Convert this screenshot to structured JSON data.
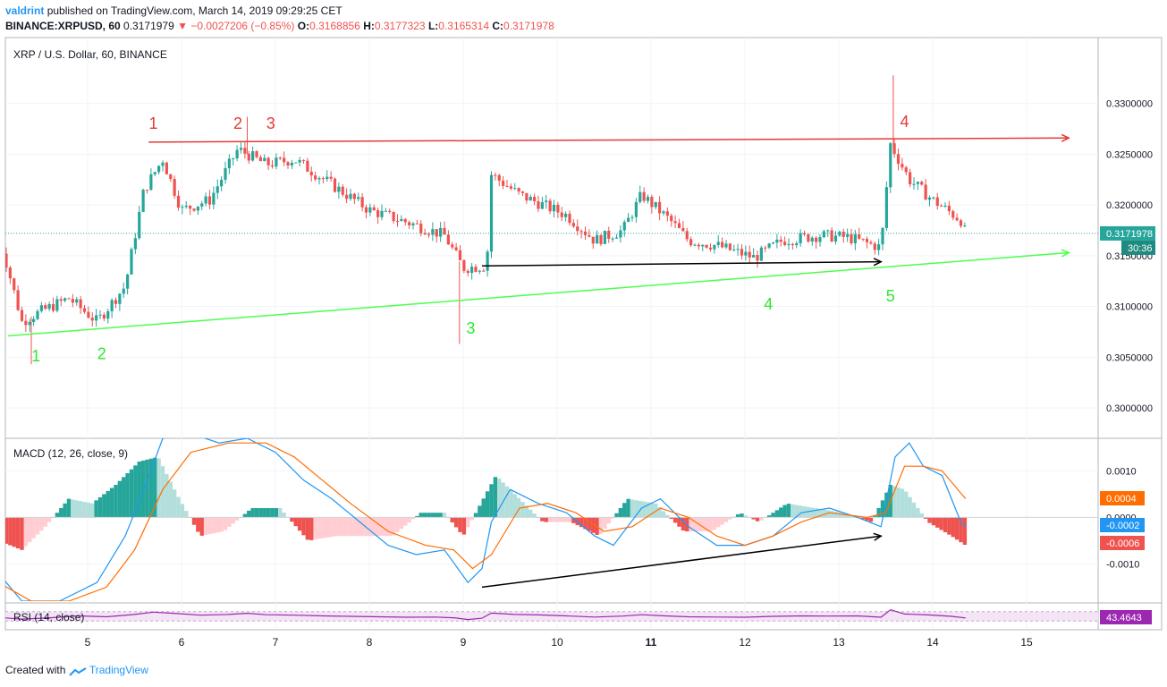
{
  "header": {
    "author": "valdrint",
    "published": "published on TradingView.com, March 14, 2019 09:29:25 CET",
    "symbol": "BINANCE:XRPUSD, 60",
    "last": "0.3171979",
    "change": "▼ −0.0027206 (−0.85%)",
    "o_label": "O:",
    "o_value": "0.3168856",
    "h_label": "H:",
    "h_value": "0.3177323",
    "l_label": "L:",
    "l_value": "0.3165314",
    "c_label": "C:",
    "c_value": "0.3171978"
  },
  "footer": {
    "created_with": "Created with",
    "brand": "TradingView"
  },
  "colors": {
    "up": "#26a69a",
    "down": "#ef5350",
    "resistance": "#e53935",
    "support": "#4cff4c",
    "macd": "#2196f3",
    "signal": "#ff6d00",
    "rsi": "#9c27b0"
  },
  "chart_data": [
    {
      "type": "candlestick",
      "title": "XRP / U.S. Dollar, 60, BINANCE",
      "ylim": [
        0.297,
        0.3365
      ],
      "y_ticks": [
        "0.3000000",
        "0.3050000",
        "0.3100000",
        "0.3150000",
        "0.3200000",
        "0.3250000",
        "0.3300000"
      ],
      "x_ticks": [
        "5",
        "6",
        "7",
        "8",
        "9",
        "10",
        "11",
        "12",
        "13",
        "14",
        "15"
      ],
      "current_price": "0.3171978",
      "countdown": "30:36",
      "key_closes": [
        {
          "t": 4.1,
          "v": 0.3155
        },
        {
          "t": 4.3,
          "v": 0.3085
        },
        {
          "t": 4.5,
          "v": 0.3095
        },
        {
          "t": 4.8,
          "v": 0.3108
        },
        {
          "t": 5.1,
          "v": 0.3085
        },
        {
          "t": 5.4,
          "v": 0.312
        },
        {
          "t": 5.6,
          "v": 0.3215
        },
        {
          "t": 5.8,
          "v": 0.3245
        },
        {
          "t": 6.0,
          "v": 0.3195
        },
        {
          "t": 6.3,
          "v": 0.3205
        },
        {
          "t": 6.6,
          "v": 0.3255
        },
        {
          "t": 6.9,
          "v": 0.324
        },
        {
          "t": 7.2,
          "v": 0.3245
        },
        {
          "t": 7.6,
          "v": 0.322
        },
        {
          "t": 8.0,
          "v": 0.3195
        },
        {
          "t": 8.5,
          "v": 0.318
        },
        {
          "t": 8.8,
          "v": 0.317
        },
        {
          "t": 9.0,
          "v": 0.3138
        },
        {
          "t": 9.25,
          "v": 0.314
        },
        {
          "t": 9.3,
          "v": 0.323
        },
        {
          "t": 9.6,
          "v": 0.321
        },
        {
          "t": 10.1,
          "v": 0.319
        },
        {
          "t": 10.4,
          "v": 0.3165
        },
        {
          "t": 10.7,
          "v": 0.3175
        },
        {
          "t": 10.9,
          "v": 0.321
        },
        {
          "t": 11.2,
          "v": 0.3185
        },
        {
          "t": 11.4,
          "v": 0.3165
        },
        {
          "t": 11.7,
          "v": 0.316
        },
        {
          "t": 12.1,
          "v": 0.3148
        },
        {
          "t": 12.4,
          "v": 0.3165
        },
        {
          "t": 12.8,
          "v": 0.317
        },
        {
          "t": 13.1,
          "v": 0.3168
        },
        {
          "t": 13.45,
          "v": 0.3158
        },
        {
          "t": 13.55,
          "v": 0.326
        },
        {
          "t": 13.75,
          "v": 0.3225
        },
        {
          "t": 14.0,
          "v": 0.3205
        },
        {
          "t": 14.3,
          "v": 0.3185
        },
        {
          "t": 14.35,
          "v": 0.3172
        }
      ],
      "extremes": [
        {
          "t": 4.4,
          "high": null,
          "low": 0.3043
        },
        {
          "t": 6.7,
          "high": 0.3287,
          "low": null
        },
        {
          "t": 8.96,
          "high": null,
          "low": 0.3063
        },
        {
          "t": 13.58,
          "high": 0.3328,
          "low": null
        }
      ],
      "drawings": {
        "resistance": {
          "from": {
            "t": 5.65,
            "v": 0.3262
          },
          "to": {
            "t": 15.45,
            "v": 0.3266
          }
        },
        "support": {
          "from": {
            "t": 4.15,
            "v": 0.3071
          },
          "to": {
            "t": 15.45,
            "v": 0.3153
          }
        },
        "black_arrow": {
          "from": {
            "t": 9.2,
            "v": 0.314
          },
          "to": {
            "t": 13.45,
            "v": 0.3144
          }
        },
        "labels": [
          {
            "text": "1",
            "color": "resistance",
            "t": 5.7,
            "v": 0.3275
          },
          {
            "text": "2",
            "color": "resistance",
            "t": 6.6,
            "v": 0.3275
          },
          {
            "text": "3",
            "color": "resistance",
            "t": 6.95,
            "v": 0.3275
          },
          {
            "text": "4",
            "color": "resistance",
            "t": 13.7,
            "v": 0.3277
          },
          {
            "text": "1",
            "color": "support",
            "t": 4.45,
            "v": 0.3046
          },
          {
            "text": "2",
            "color": "support",
            "t": 5.15,
            "v": 0.3048
          },
          {
            "text": "3",
            "color": "support",
            "t": 9.08,
            "v": 0.3073
          },
          {
            "text": "4",
            "color": "support",
            "t": 12.25,
            "v": 0.3097
          },
          {
            "text": "5",
            "color": "support",
            "t": 13.55,
            "v": 0.3105
          }
        ]
      }
    },
    {
      "type": "line+bar",
      "title": "MACD (12, 26, close, 9)",
      "ylim": [
        -0.0018,
        0.0017
      ],
      "y_ticks": [
        "0.0010",
        "0.0000",
        "-0.0010"
      ],
      "badges": [
        "0.0004",
        "-0.0002",
        "-0.0006"
      ],
      "series": [
        {
          "name": "macd",
          "points": [
            [
              4.05,
              -0.0012
            ],
            [
              4.3,
              -0.0018
            ],
            [
              4.7,
              -0.0018
            ],
            [
              5.1,
              -0.0014
            ],
            [
              5.4,
              -0.0004
            ],
            [
              5.6,
              0.0006
            ],
            [
              5.8,
              0.0017
            ],
            [
              6.1,
              0.0018
            ],
            [
              6.4,
              0.0016
            ],
            [
              6.7,
              0.0017
            ],
            [
              7.0,
              0.0014
            ],
            [
              7.3,
              0.0008
            ],
            [
              7.6,
              0.0004
            ],
            [
              7.9,
              -0.0001
            ],
            [
              8.2,
              -0.0006
            ],
            [
              8.5,
              -0.0008
            ],
            [
              8.8,
              -0.0007
            ],
            [
              9.05,
              -0.0014
            ],
            [
              9.2,
              -0.0011
            ],
            [
              9.3,
              -0.0001
            ],
            [
              9.5,
              0.0006
            ],
            [
              9.8,
              0.0003
            ],
            [
              10.1,
              0.0001
            ],
            [
              10.4,
              -0.0004
            ],
            [
              10.6,
              -0.0006
            ],
            [
              10.9,
              0.0002
            ],
            [
              11.1,
              0.0004
            ],
            [
              11.4,
              -0.0002
            ],
            [
              11.7,
              -0.0006
            ],
            [
              12.0,
              -0.0006
            ],
            [
              12.3,
              -0.0004
            ],
            [
              12.6,
              0.0001
            ],
            [
              12.9,
              0.0002
            ],
            [
              13.2,
              0.0
            ],
            [
              13.45,
              -0.0002
            ],
            [
              13.6,
              0.0013
            ],
            [
              13.75,
              0.0016
            ],
            [
              13.9,
              0.0011
            ],
            [
              14.1,
              0.0009
            ],
            [
              14.3,
              -0.0001
            ],
            [
              14.35,
              -0.0002
            ]
          ]
        },
        {
          "name": "signal",
          "points": [
            [
              4.05,
              -0.0014
            ],
            [
              4.4,
              -0.0018
            ],
            [
              4.8,
              -0.0018
            ],
            [
              5.2,
              -0.0015
            ],
            [
              5.5,
              -0.0007
            ],
            [
              5.8,
              0.0006
            ],
            [
              6.1,
              0.0014
            ],
            [
              6.5,
              0.0016
            ],
            [
              6.9,
              0.0016
            ],
            [
              7.2,
              0.0013
            ],
            [
              7.5,
              0.0008
            ],
            [
              7.8,
              0.0003
            ],
            [
              8.2,
              -0.0003
            ],
            [
              8.6,
              -0.0006
            ],
            [
              8.9,
              -0.0007
            ],
            [
              9.1,
              -0.0011
            ],
            [
              9.3,
              -0.0008
            ],
            [
              9.6,
              0.0002
            ],
            [
              9.9,
              0.0003
            ],
            [
              10.2,
              0.0001
            ],
            [
              10.5,
              -0.0003
            ],
            [
              10.8,
              -0.0002
            ],
            [
              11.1,
              0.0002
            ],
            [
              11.4,
              0.0
            ],
            [
              11.7,
              -0.0004
            ],
            [
              12.0,
              -0.0006
            ],
            [
              12.3,
              -0.0004
            ],
            [
              12.6,
              -0.0001
            ],
            [
              12.9,
              0.0001
            ],
            [
              13.3,
              0.0
            ],
            [
              13.5,
              0.0001
            ],
            [
              13.7,
              0.0011
            ],
            [
              13.9,
              0.0011
            ],
            [
              14.1,
              0.001
            ],
            [
              14.35,
              0.0004
            ]
          ]
        }
      ],
      "histogram": [
        {
          "t": 4.05,
          "v": -0.0005
        },
        {
          "t": 4.3,
          "v": -0.0007
        },
        {
          "t": 4.55,
          "v": -0.0002
        },
        {
          "t": 4.8,
          "v": 0.0004
        },
        {
          "t": 5.05,
          "v": 0.0003
        },
        {
          "t": 5.3,
          "v": 0.0007
        },
        {
          "t": 5.55,
          "v": 0.0012
        },
        {
          "t": 5.75,
          "v": 0.0013
        },
        {
          "t": 5.95,
          "v": 0.0005
        },
        {
          "t": 6.2,
          "v": -0.0004
        },
        {
          "t": 6.45,
          "v": -0.0003
        },
        {
          "t": 6.75,
          "v": 0.0002
        },
        {
          "t": 7.05,
          "v": 0.0002
        },
        {
          "t": 7.35,
          "v": -0.0005
        },
        {
          "t": 7.65,
          "v": -0.0004
        },
        {
          "t": 7.95,
          "v": -0.0004
        },
        {
          "t": 8.25,
          "v": -0.0004
        },
        {
          "t": 8.55,
          "v": 0.0001
        },
        {
          "t": 8.8,
          "v": 0.0001
        },
        {
          "t": 9.0,
          "v": -0.0004
        },
        {
          "t": 9.35,
          "v": 0.0009
        },
        {
          "t": 9.6,
          "v": 0.0004
        },
        {
          "t": 9.85,
          "v": -0.0001
        },
        {
          "t": 10.15,
          "v": -0.0001
        },
        {
          "t": 10.45,
          "v": -0.0004
        },
        {
          "t": 10.75,
          "v": 0.0004
        },
        {
          "t": 11.05,
          "v": 0.0003
        },
        {
          "t": 11.35,
          "v": -0.0003
        },
        {
          "t": 11.65,
          "v": -0.0003
        },
        {
          "t": 11.95,
          "v": 0.0001
        },
        {
          "t": 12.15,
          "v": -0.0001
        },
        {
          "t": 12.45,
          "v": 0.0003
        },
        {
          "t": 12.75,
          "v": 0.0002
        },
        {
          "t": 13.05,
          "v": 0.0001
        },
        {
          "t": 13.35,
          "v": -0.0001
        },
        {
          "t": 13.55,
          "v": 0.0007
        },
        {
          "t": 13.7,
          "v": 0.0006
        },
        {
          "t": 13.95,
          "v": -0.0001
        },
        {
          "t": 14.2,
          "v": -0.0004
        },
        {
          "t": 14.35,
          "v": -0.0006
        }
      ],
      "black_arrow": {
        "from": {
          "t": 9.2,
          "v": -0.0015
        },
        "to": {
          "t": 13.45,
          "v": -0.0004
        }
      }
    },
    {
      "type": "line",
      "title": "RSI (14, close)",
      "ylim": [
        0,
        100
      ],
      "bands": [
        30,
        70
      ],
      "badge": "43.4643",
      "series": [
        {
          "name": "rsi",
          "points": [
            [
              4.05,
              45
            ],
            [
              4.3,
              38
            ],
            [
              4.6,
              44
            ],
            [
              4.9,
              52
            ],
            [
              5.2,
              48
            ],
            [
              5.5,
              58
            ],
            [
              5.7,
              68
            ],
            [
              5.95,
              62
            ],
            [
              6.2,
              55
            ],
            [
              6.5,
              58
            ],
            [
              6.7,
              63
            ],
            [
              6.9,
              57
            ],
            [
              7.2,
              55
            ],
            [
              7.5,
              52
            ],
            [
              7.8,
              50
            ],
            [
              8.1,
              48
            ],
            [
              8.4,
              46
            ],
            [
              8.7,
              47
            ],
            [
              8.9,
              44
            ],
            [
              9.05,
              36
            ],
            [
              9.2,
              42
            ],
            [
              9.3,
              64
            ],
            [
              9.55,
              58
            ],
            [
              9.8,
              56
            ],
            [
              10.1,
              52
            ],
            [
              10.4,
              47
            ],
            [
              10.7,
              51
            ],
            [
              10.9,
              57
            ],
            [
              11.15,
              52
            ],
            [
              11.4,
              48
            ],
            [
              11.7,
              47
            ],
            [
              12.0,
              46
            ],
            [
              12.3,
              50
            ],
            [
              12.6,
              52
            ],
            [
              12.9,
              51
            ],
            [
              13.2,
              52
            ],
            [
              13.45,
              46
            ],
            [
              13.55,
              78
            ],
            [
              13.7,
              60
            ],
            [
              13.95,
              56
            ],
            [
              14.2,
              50
            ],
            [
              14.35,
              43
            ]
          ]
        }
      ]
    }
  ]
}
